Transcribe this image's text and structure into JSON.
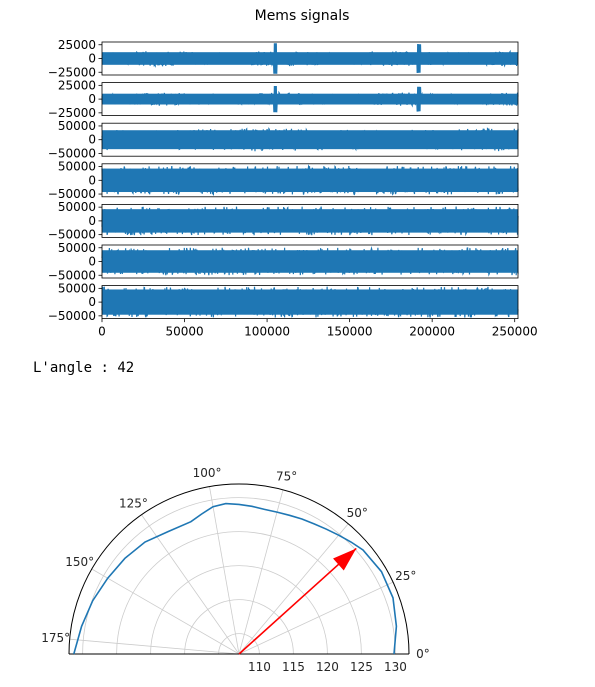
{
  "console": {
    "label": "L'angle",
    "separator": " : ",
    "value": "42"
  },
  "chart_data": [
    {
      "type": "line",
      "title": "Mems signals",
      "xlim": [
        0,
        252000
      ],
      "xticks": [
        0,
        50000,
        100000,
        150000,
        200000,
        250000
      ],
      "x_range": [
        0,
        252000
      ],
      "color": "#1f77b4",
      "grid": false,
      "panels": [
        {
          "ylim": [
            -30000,
            30000
          ],
          "yticks": [
            25000,
            0,
            -25000
          ],
          "amplitude": 14000,
          "envelope_hint": "spikes near 105000 and 195000"
        },
        {
          "ylim": [
            -30000,
            30000
          ],
          "yticks": [
            25000,
            0,
            -25000
          ],
          "amplitude": 12000,
          "envelope_hint": "spikes near 105000 and 190000"
        },
        {
          "ylim": [
            -60000,
            60000
          ],
          "yticks": [
            50000,
            0,
            -50000
          ],
          "amplitude": 42000,
          "envelope_hint": "dip near 100000"
        },
        {
          "ylim": [
            -60000,
            60000
          ],
          "yticks": [
            50000,
            0,
            -50000
          ],
          "amplitude": 52000,
          "envelope_hint": "flat"
        },
        {
          "ylim": [
            -60000,
            60000
          ],
          "yticks": [
            50000,
            0,
            -50000
          ],
          "amplitude": 52000,
          "envelope_hint": "flat"
        },
        {
          "ylim": [
            -60000,
            60000
          ],
          "yticks": [
            50000,
            0,
            -50000
          ],
          "amplitude": 50000,
          "envelope_hint": "flat"
        },
        {
          "ylim": [
            -60000,
            60000
          ],
          "yticks": [
            50000,
            0,
            -50000
          ],
          "amplitude": 56000,
          "envelope_hint": "flat"
        }
      ]
    },
    {
      "type": "polar-line",
      "theta_range_deg": [
        0,
        180
      ],
      "theta_ticks": [
        0,
        25,
        50,
        75,
        100,
        125,
        150,
        175
      ],
      "r_range": [
        107,
        132
      ],
      "r_ticks": [
        110,
        115,
        120,
        125,
        130
      ],
      "grid": true,
      "curve_color": "#1f77b4",
      "curve": {
        "theta": [
          0,
          10,
          20,
          30,
          40,
          45,
          50,
          55,
          60,
          65,
          70,
          75,
          80,
          85,
          90,
          95,
          100,
          105,
          110,
          120,
          130,
          140,
          150,
          160,
          170,
          180
        ],
        "r": [
          129.8,
          130.5,
          131.1,
          131.2,
          130.8,
          130.3,
          129.8,
          129.4,
          129.1,
          128.9,
          128.7,
          128.6,
          128.6,
          128.8,
          129.0,
          129.2,
          129.0,
          128.3,
          127.7,
          127.8,
          128.5,
          128.9,
          129.3,
          129.9,
          130.5,
          131.3
        ]
      },
      "arrow": {
        "theta_deg": 42,
        "r": 130.2,
        "color": "#ff0000"
      }
    }
  ]
}
